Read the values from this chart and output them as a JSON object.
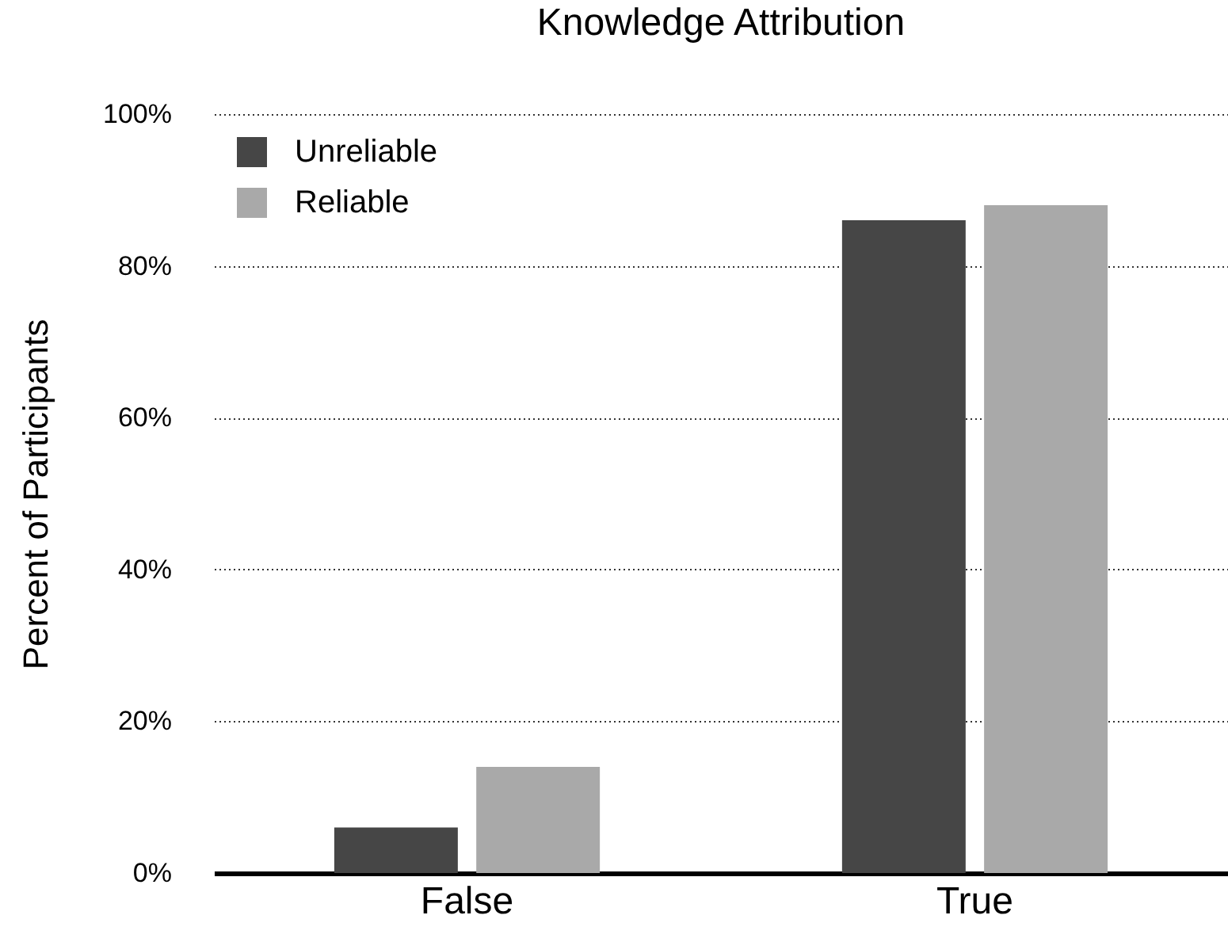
{
  "chart_data": {
    "type": "bar",
    "title": "Knowledge Attribution",
    "ylabel": "Percent of Participants",
    "categories": [
      "False",
      "True"
    ],
    "series": [
      {
        "name": "Unreliable",
        "color": "#464646",
        "values": [
          6,
          86
        ]
      },
      {
        "name": "Reliable",
        "color": "#a9a9a9",
        "values": [
          14,
          88
        ]
      }
    ],
    "ylim": [
      0,
      100
    ],
    "yticks": [
      {
        "value": 0,
        "label": "0%"
      },
      {
        "value": 20,
        "label": "20%"
      },
      {
        "value": 40,
        "label": "40%"
      },
      {
        "value": 60,
        "label": "60%"
      },
      {
        "value": 80,
        "label": "80%"
      },
      {
        "value": 100,
        "label": "100%"
      }
    ],
    "grid": "y",
    "legend": "top left"
  }
}
